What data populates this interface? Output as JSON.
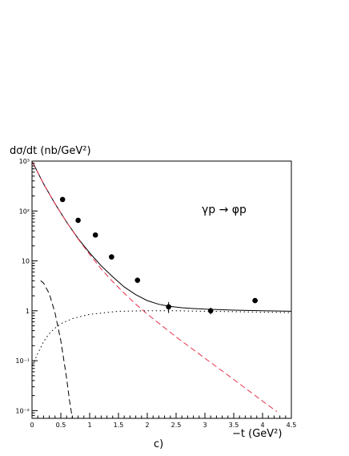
{
  "chart_data": {
    "type": "scatter",
    "title": "",
    "ylabel": "dσ/dt (nb/GeV²)",
    "xlabel": "−t (GeV²)",
    "panel_label": "c)",
    "annotation": "γp → φp",
    "xlim": [
      0,
      4.5
    ],
    "ylim": [
      0.007,
      1000
    ],
    "yscale": "log",
    "grid": false,
    "x_ticks": [
      {
        "v": 0,
        "label": "0"
      },
      {
        "v": 0.5,
        "label": "0.5"
      },
      {
        "v": 1,
        "label": "1"
      },
      {
        "v": 1.5,
        "label": "1.5"
      },
      {
        "v": 2,
        "label": "2"
      },
      {
        "v": 2.5,
        "label": "2.5"
      },
      {
        "v": 3,
        "label": "3"
      },
      {
        "v": 3.5,
        "label": "3.5"
      },
      {
        "v": 4,
        "label": "4"
      },
      {
        "v": 4.5,
        "label": "4.5"
      }
    ],
    "y_ticks": [
      {
        "v": 0.01,
        "label": "10⁻²"
      },
      {
        "v": 0.1,
        "label": "10⁻¹"
      },
      {
        "v": 1,
        "label": "1"
      },
      {
        "v": 10,
        "label": "10"
      },
      {
        "v": 100,
        "label": "10²"
      },
      {
        "v": 1000,
        "label": "10³"
      }
    ],
    "points": [
      {
        "x": 0.53,
        "y": 170,
        "err": 15
      },
      {
        "x": 0.8,
        "y": 65,
        "err": 6
      },
      {
        "x": 1.1,
        "y": 33,
        "err": 3
      },
      {
        "x": 1.38,
        "y": 12,
        "err": 1.2
      },
      {
        "x": 1.83,
        "y": 4.1,
        "err": 0.5
      },
      {
        "x": 2.37,
        "y": 1.2,
        "err": 0.3
      },
      {
        "x": 3.1,
        "y": 1.0,
        "err": 0.15
      },
      {
        "x": 3.87,
        "y": 1.6,
        "err": 0.15
      }
    ],
    "series": [
      {
        "style": "solid",
        "color": "#000000",
        "x": [
          0.01,
          0.2,
          0.4,
          0.6,
          0.8,
          1.0,
          1.2,
          1.4,
          1.6,
          1.8,
          2.0,
          2.2,
          2.4,
          2.6,
          2.8,
          3.0,
          3.5,
          4.0,
          4.5
        ],
        "y": [
          950,
          350,
          140,
          60,
          28,
          14.5,
          8.0,
          4.8,
          3.0,
          2.1,
          1.6,
          1.35,
          1.22,
          1.15,
          1.11,
          1.08,
          1.03,
          1.0,
          0.98
        ]
      },
      {
        "style": "dashed",
        "color": "#e8304a",
        "x": [
          0.01,
          0.2,
          0.4,
          0.6,
          0.8,
          1.0,
          1.2,
          1.4,
          1.6,
          1.8,
          2.0,
          2.5,
          3.0,
          3.5,
          4.0,
          4.25
        ],
        "y": [
          950,
          350,
          140,
          60,
          27.5,
          13.5,
          6.9,
          3.85,
          2.25,
          1.36,
          0.86,
          0.3,
          0.112,
          0.042,
          0.0155,
          0.0095
        ]
      },
      {
        "style": "dashed",
        "color": "#000000",
        "x": [
          0.15,
          0.2,
          0.3,
          0.4,
          0.5,
          0.6,
          0.65,
          0.7
        ],
        "y": [
          4.0,
          3.6,
          2.2,
          0.9,
          0.25,
          0.045,
          0.016,
          0.007
        ]
      },
      {
        "style": "dotted",
        "color": "#000000",
        "x": [
          0.01,
          0.1,
          0.2,
          0.3,
          0.4,
          0.5,
          0.7,
          1.0,
          1.5,
          2.0,
          2.5,
          3.0,
          3.5,
          4.0,
          4.5
        ],
        "y": [
          0.08,
          0.14,
          0.24,
          0.35,
          0.45,
          0.55,
          0.7,
          0.85,
          0.98,
          1.0,
          1.0,
          0.98,
          0.96,
          0.94,
          0.92
        ]
      }
    ]
  }
}
